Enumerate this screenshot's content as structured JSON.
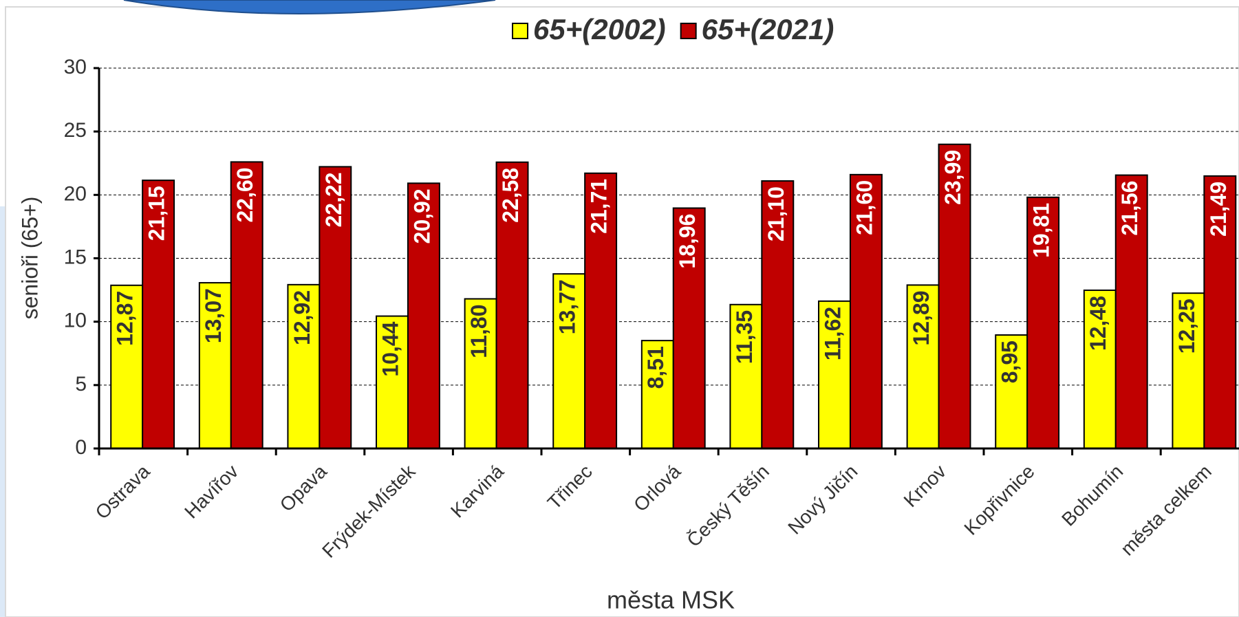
{
  "chart_data": {
    "type": "bar",
    "categories": [
      "Ostrava",
      "Havířov",
      "Opava",
      "Frýdek-Místek",
      "Karviná",
      "Třinec",
      "Orlová",
      "Český Těšín",
      "Nový Jičín",
      "Krnov",
      "Kopřivnice",
      "Bohumín",
      "města celkem"
    ],
    "series": [
      {
        "name": "65+(2002)",
        "color": "#ffff00",
        "values": [
          12.87,
          13.07,
          12.92,
          10.44,
          11.8,
          13.77,
          8.51,
          11.35,
          11.62,
          12.89,
          8.95,
          12.48,
          12.25
        ],
        "value_labels": [
          "12,87",
          "13,07",
          "12,92",
          "10,44",
          "11,80",
          "13,77",
          "8,51",
          "11,35",
          "11,62",
          "12,89",
          "8,95",
          "12,48",
          "12,25"
        ]
      },
      {
        "name": "65+(2021)",
        "color": "#c00000",
        "values": [
          21.15,
          22.6,
          22.22,
          20.92,
          22.58,
          21.71,
          18.96,
          21.1,
          21.6,
          23.99,
          19.81,
          21.56,
          21.49
        ],
        "value_labels": [
          "21,15",
          "22,60",
          "22,22",
          "20,92",
          "22,58",
          "21,71",
          "18,96",
          "21,10",
          "21,60",
          "23,99",
          "19,81",
          "21,56",
          "21,49"
        ]
      }
    ],
    "ylim": [
      0,
      30
    ],
    "yticks": [
      0,
      5,
      10,
      15,
      20,
      25,
      30
    ],
    "grid": true,
    "y_label": "senioři (65+)",
    "x_label": "města MSK",
    "legend": "top"
  }
}
